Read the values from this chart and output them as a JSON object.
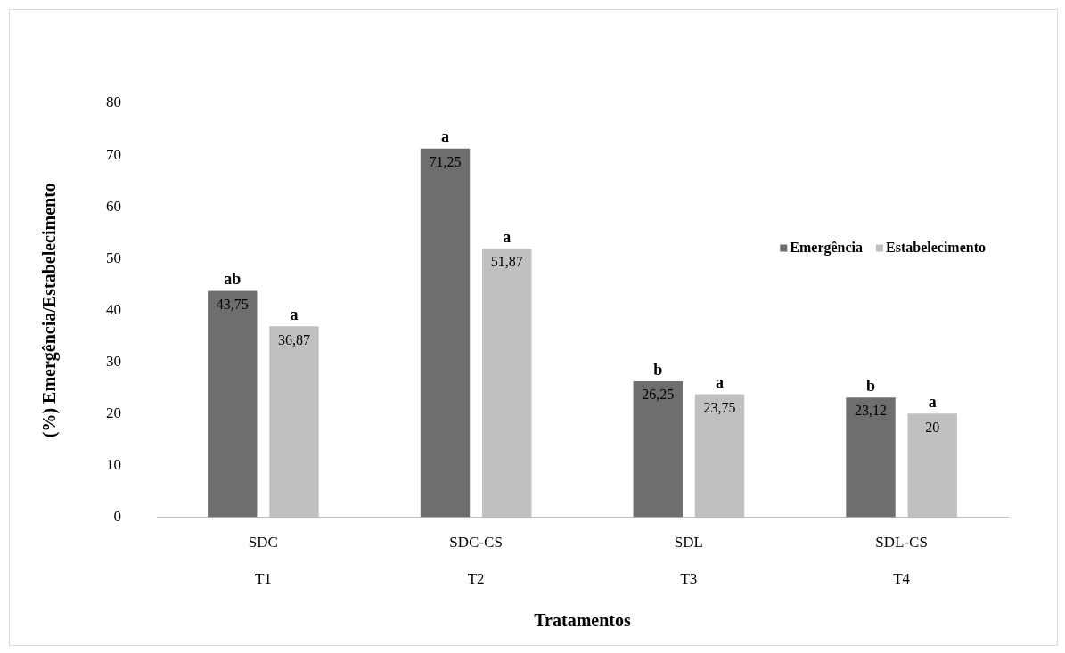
{
  "chart_data": {
    "type": "bar",
    "xlabel": "Tratamentos",
    "ylabel": "(%) Emergência/Estabelecimento",
    "categories": [
      "SDC\nT1",
      "SDC-CS\nT2",
      "SDL\nT3",
      "SDL-CS\nT4"
    ],
    "series": [
      {
        "name": "Emergência",
        "color": "#6e6e6e",
        "values": [
          43.75,
          71.25,
          26.25,
          23.12
        ],
        "value_labels": [
          "43,75",
          "71,25",
          "26,25",
          "23,12"
        ]
      },
      {
        "name": "Estabelecimento",
        "color": "#c0c0c0",
        "values": [
          36.87,
          51.87,
          23.75,
          20
        ],
        "value_labels": [
          "36,87",
          "51,87",
          "23,75",
          "20"
        ]
      }
    ],
    "ylim": [
      0,
      80
    ],
    "yticks": [
      0,
      10,
      20,
      30,
      40,
      50,
      60,
      70,
      80
    ],
    "grid": false,
    "legend": "right",
    "annotations": [
      "ab",
      "a",
      "a",
      "a",
      "b",
      "a",
      "b",
      "a"
    ]
  }
}
